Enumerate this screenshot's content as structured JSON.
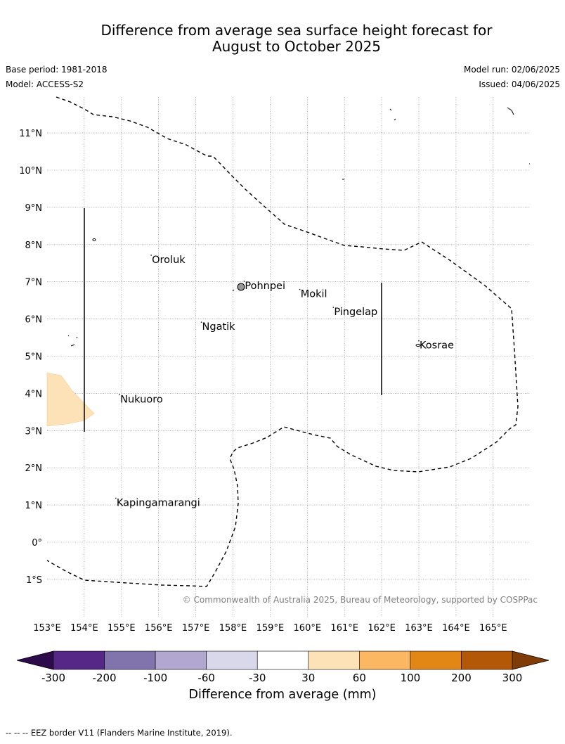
{
  "title_line1": "Difference from average sea surface height forecast for",
  "title_line2": "August to October 2025",
  "base_period": "Base period: 1981-2018",
  "model": "Model: ACCESS-S2",
  "model_run": "Model run: 02/06/2025",
  "issued": "Issued: 04/06/2025",
  "copyright": "© Commonwealth of Australia 2025, Bureau of Meteorology, supported by COSPPac",
  "footer_note": "--  --  -- EEZ border V11 (Flanders Marine Institute, 2019).",
  "lat_labels": [
    "11°N",
    "10°N",
    "9°N",
    "8°N",
    "7°N",
    "6°N",
    "5°N",
    "4°N",
    "3°N",
    "2°N",
    "1°N",
    "0°",
    "1°S"
  ],
  "lon_labels": [
    "153°E",
    "154°E",
    "155°E",
    "156°E",
    "157°E",
    "158°E",
    "159°E",
    "160°E",
    "161°E",
    "162°E",
    "163°E",
    "164°E",
    "165°E"
  ],
  "places": [
    {
      "name": "Oroluk",
      "lon": 155.8,
      "lat": 7.6
    },
    {
      "name": "Pohnpei",
      "lon": 158.3,
      "lat": 6.9
    },
    {
      "name": "Mokil",
      "lon": 159.8,
      "lat": 6.68
    },
    {
      "name": "Pingelap",
      "lon": 160.7,
      "lat": 6.2
    },
    {
      "name": "Ngatik",
      "lon": 157.15,
      "lat": 5.8
    },
    {
      "name": "Kosrae",
      "lon": 163.0,
      "lat": 5.3
    },
    {
      "name": "Nukuoro",
      "lon": 154.95,
      "lat": 3.85
    },
    {
      "name": "Kapingamarangi",
      "lon": 154.85,
      "lat": 1.07
    }
  ],
  "colorbar": {
    "title": "Difference from average (mm)",
    "ticks": [
      "-300",
      "-200",
      "-100",
      "-60",
      "-30",
      "30",
      "60",
      "100",
      "200",
      "300"
    ],
    "colors": [
      "#562786",
      "#8174ac",
      "#b1a7d1",
      "#d9d8ea",
      "#ffffff",
      "#fde1b7",
      "#fcb762",
      "#e28616",
      "#b35806"
    ],
    "under_color": "#2d0a4a",
    "over_color": "#7f3b08"
  }
}
